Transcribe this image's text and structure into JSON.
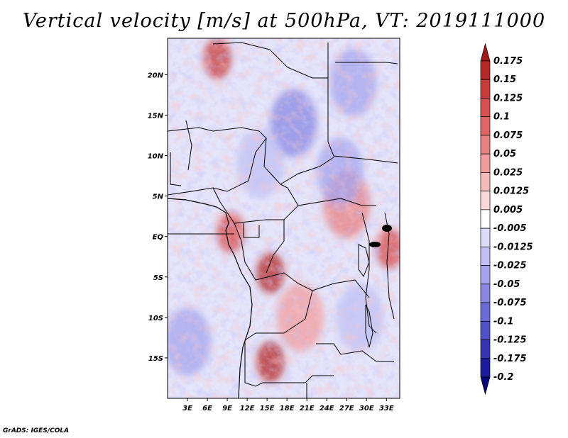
{
  "title": "Vertical velocity [m/s] at 500hPa, VT: 2019111000",
  "credit": "GrADS: IGES/COLA",
  "chart_data": {
    "type": "heatmap",
    "title": "Vertical velocity [m/s] at 500hPa, VT: 2019111000",
    "variable": "Vertical velocity",
    "units": "m/s",
    "level": "500hPa",
    "valid_time": "2019111000",
    "x_range": [
      0,
      35
    ],
    "y_range": [
      -20,
      24.5
    ],
    "x_ticks": [
      {
        "value": 3,
        "label": "3E"
      },
      {
        "value": 6,
        "label": "6E"
      },
      {
        "value": 9,
        "label": "9E"
      },
      {
        "value": 12,
        "label": "12E"
      },
      {
        "value": 15,
        "label": "15E"
      },
      {
        "value": 18,
        "label": "18E"
      },
      {
        "value": 21,
        "label": "21E"
      },
      {
        "value": 24,
        "label": "24E"
      },
      {
        "value": 27,
        "label": "27E"
      },
      {
        "value": 30,
        "label": "30E"
      },
      {
        "value": 33,
        "label": "33E"
      }
    ],
    "y_ticks": [
      {
        "value": 20,
        "label": "20N"
      },
      {
        "value": 15,
        "label": "15N"
      },
      {
        "value": 10,
        "label": "10N"
      },
      {
        "value": 5,
        "label": "5N"
      },
      {
        "value": 0,
        "label": "EQ"
      },
      {
        "value": -5,
        "label": "5S"
      },
      {
        "value": -10,
        "label": "10S"
      },
      {
        "value": -15,
        "label": "15S"
      }
    ],
    "colorbar": {
      "labels": [
        "0.175",
        "0.15",
        "0.125",
        "0.1",
        "0.075",
        "0.05",
        "0.025",
        "0.0125",
        "0.005",
        "-0.005",
        "-0.0125",
        "-0.025",
        "-0.05",
        "-0.075",
        "-0.1",
        "-0.125",
        "-0.175",
        "-0.2"
      ],
      "colors": [
        "#a01a1a",
        "#b42828",
        "#c83c3c",
        "#d85050",
        "#e06666",
        "#e88080",
        "#f09c9c",
        "#f6baba",
        "#fad8d8",
        "#ffffff",
        "#dcdcf8",
        "#c0c0f4",
        "#a4a4ee",
        "#8888e4",
        "#6c6cd8",
        "#5050c8",
        "#3434b4",
        "#1c1c9c",
        "#08087c"
      ]
    },
    "features": [
      {
        "label": "strong ascent",
        "lon": 15.5,
        "lat": -4.5,
        "value": 0.15
      },
      {
        "label": "strong ascent",
        "lon": 15.5,
        "lat": -15.5,
        "value": 0.15
      },
      {
        "label": "strong ascent",
        "lon": 7.5,
        "lat": 22,
        "value": 0.125
      },
      {
        "label": "ascent",
        "lon": 9.5,
        "lat": 0.5,
        "value": 0.1
      },
      {
        "label": "ascent",
        "lon": 33.5,
        "lat": -1.5,
        "value": 0.1
      },
      {
        "label": "ascent",
        "lon": 27,
        "lat": 4,
        "value": 0.05
      },
      {
        "label": "ascent",
        "lon": 20,
        "lat": -10,
        "value": 0.025
      },
      {
        "label": "subsidence",
        "lon": 19,
        "lat": 14,
        "value": -0.075
      },
      {
        "label": "subsidence",
        "lon": 28,
        "lat": 19,
        "value": -0.05
      },
      {
        "label": "subsidence",
        "lon": 26,
        "lat": 8,
        "value": -0.05
      },
      {
        "label": "subsidence",
        "lon": 3,
        "lat": -13,
        "value": -0.05
      },
      {
        "label": "subsidence",
        "lon": 14,
        "lat": 9,
        "value": -0.025
      },
      {
        "label": "subsidence",
        "lon": 29,
        "lat": -10,
        "value": -0.025
      }
    ]
  }
}
